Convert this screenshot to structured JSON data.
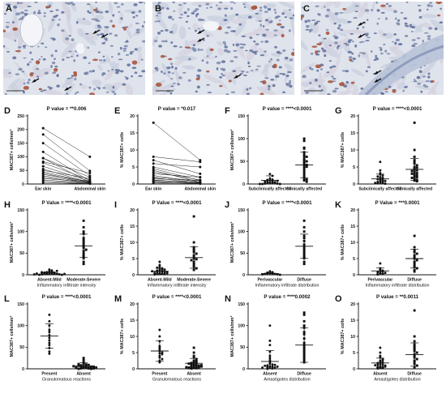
{
  "micrographs": [
    {
      "label": "A",
      "description": "MAC387 immunostained dermis, scattered brown cells, black arrows"
    },
    {
      "label": "B",
      "description": "MAC387 immunostained dermis with arrows on positive cells"
    },
    {
      "label": "C",
      "description": "MAC387 immunostained dermis near adnexa with arrows"
    }
  ],
  "chart_data": [
    {
      "id": "D",
      "type": "paired",
      "title": "P value = **0.006",
      "ylabel": "MAC387+ cells/mm²",
      "ylim": [
        0,
        250
      ],
      "yticks": [
        0,
        50,
        100,
        150,
        200,
        250
      ],
      "categories": [
        "Ear skin",
        "Abdominal skin"
      ],
      "pairs": [
        [
          205,
          100
        ],
        [
          182,
          48
        ],
        [
          150,
          30
        ],
        [
          118,
          10
        ],
        [
          95,
          25
        ],
        [
          95,
          5
        ],
        [
          82,
          40
        ],
        [
          78,
          15
        ],
        [
          65,
          10
        ],
        [
          55,
          5
        ],
        [
          50,
          20
        ],
        [
          45,
          5
        ],
        [
          40,
          3
        ],
        [
          35,
          10
        ],
        [
          30,
          5
        ],
        [
          25,
          2
        ],
        [
          20,
          8
        ],
        [
          15,
          3
        ],
        [
          10,
          2
        ],
        [
          5,
          1
        ]
      ],
      "xlabel": ""
    },
    {
      "id": "E",
      "type": "paired",
      "title": "P value = *0.017",
      "ylabel": "% MAC387+ cells",
      "ylim": [
        0,
        20
      ],
      "yticks": [
        0,
        5,
        10,
        15,
        20
      ],
      "categories": [
        "Ear skin",
        "Abdominal skin"
      ],
      "pairs": [
        [
          18,
          7
        ],
        [
          8,
          6.5
        ],
        [
          7,
          3
        ],
        [
          6,
          5
        ],
        [
          5,
          2
        ],
        [
          4.5,
          1
        ],
        [
          4,
          0.5
        ],
        [
          3.5,
          1.2
        ],
        [
          3,
          2
        ],
        [
          2.5,
          0.5
        ],
        [
          2,
          1
        ],
        [
          1.8,
          0.3
        ],
        [
          1.5,
          1
        ],
        [
          1.2,
          0.2
        ],
        [
          1,
          0.5
        ],
        [
          0.8,
          0.3
        ],
        [
          0.5,
          0.1
        ],
        [
          0.3,
          0.2
        ]
      ],
      "xlabel": ""
    },
    {
      "id": "F",
      "type": "scatter",
      "title": "P value = ****<0.0001",
      "ylabel": "MAC387+ cells/mm²",
      "ylim": [
        0,
        150
      ],
      "yticks": [
        0,
        50,
        100,
        150
      ],
      "categories": [
        "Subclinically affected",
        "Clinically affected"
      ],
      "groups": [
        [
          22,
          18,
          12,
          10,
          8,
          6,
          5,
          4,
          3,
          3,
          2,
          2,
          1,
          1,
          0,
          0,
          0,
          5,
          7,
          9
        ],
        [
          100,
          95,
          80,
          78,
          70,
          65,
          60,
          55,
          52,
          48,
          45,
          42,
          40,
          38,
          35,
          30,
          25,
          20,
          15,
          12,
          10,
          8,
          5,
          60,
          50
        ]
      ],
      "mean": [
        8,
        42
      ],
      "sd": [
        10,
        28
      ],
      "xlabel": ""
    },
    {
      "id": "G",
      "type": "scatter",
      "title": "P value = ****<0.0001",
      "ylabel": "% MAC387+ cells",
      "ylim": [
        0,
        20
      ],
      "yticks": [
        0,
        5,
        10,
        15,
        20
      ],
      "categories": [
        "Subclinically affected",
        "Clinically affected"
      ],
      "groups": [
        [
          6.5,
          4,
          3.2,
          2.8,
          2.5,
          2,
          1.8,
          1.5,
          1.2,
          1,
          0.8,
          0.6,
          0.5,
          0.4,
          0.2,
          0.1,
          1.4,
          2.2,
          0.9,
          0.3
        ],
        [
          18,
          10,
          8,
          7,
          6.5,
          6,
          5.5,
          5,
          4.6,
          4.2,
          4,
          3.8,
          3.5,
          3.2,
          3,
          2.8,
          2.5,
          2.2,
          2,
          1.8,
          1.5,
          1.2,
          1,
          0.8,
          4.8
        ]
      ],
      "mean": [
        1.5,
        4.3
      ],
      "sd": [
        1.4,
        3.2
      ],
      "xlabel": ""
    },
    {
      "id": "H",
      "type": "scatter",
      "title": "P Value = ****<0.0001",
      "ylabel": "MAC387+ cells/mm²",
      "ylim": [
        0,
        150
      ],
      "yticks": [
        0,
        50,
        100,
        150
      ],
      "categories": [
        "Absent-Mild",
        "Moderate-Severe"
      ],
      "groups": [
        [
          12,
          10,
          8,
          7,
          6,
          5,
          5,
          4,
          4,
          3,
          3,
          2,
          2,
          1,
          1,
          0,
          0,
          9,
          6,
          3,
          2,
          1
        ],
        [
          125,
          110,
          100,
          95,
          85,
          80,
          75,
          70,
          65,
          62,
          58,
          55,
          50,
          45,
          42,
          38,
          30,
          25
        ]
      ],
      "mean": [
        4,
        67
      ],
      "sd": [
        3,
        27
      ],
      "xlabel": "Inflammatory infiltrate intensity"
    },
    {
      "id": "I",
      "type": "scatter",
      "title": "P Value = ****<0.0001",
      "ylabel": "% MAC387+ cells",
      "ylim": [
        0,
        20
      ],
      "yticks": [
        0,
        5,
        10,
        15,
        20
      ],
      "categories": [
        "Absent-Mild",
        "Moderate-Severe"
      ],
      "groups": [
        [
          4,
          3,
          2.5,
          2,
          1.8,
          1.5,
          1.3,
          1.2,
          1,
          0.9,
          0.8,
          0.6,
          0.5,
          0.4,
          0.3,
          0.2,
          0.1,
          2.2,
          1.6,
          0.7,
          0.5,
          1.1
        ],
        [
          18,
          10,
          8.5,
          8,
          7.5,
          7,
          6.5,
          6,
          5.5,
          5,
          4.8,
          4.5,
          4,
          3.5,
          3,
          2.5,
          2,
          1.5
        ]
      ],
      "mean": [
        1.1,
        5.3
      ],
      "sd": [
        0.9,
        3.3
      ],
      "xlabel": "Inflammatory infiltrate intensity"
    },
    {
      "id": "J",
      "type": "scatter",
      "title": "P Value = ****<0.0001",
      "ylabel": "MAC387+ cells/mm²",
      "ylim": [
        0,
        150
      ],
      "yticks": [
        0,
        50,
        100,
        150
      ],
      "categories": [
        "Perivascular",
        "Diffuse"
      ],
      "groups": [
        [
          8,
          6,
          5,
          4,
          3,
          3,
          2,
          2,
          1,
          1,
          0
        ],
        [
          125,
          110,
          100,
          90,
          85,
          78,
          70,
          65,
          60,
          55,
          50,
          45,
          42,
          38,
          30,
          25
        ]
      ],
      "mean": [
        3,
        66
      ],
      "sd": [
        2.5,
        28
      ],
      "xlabel": "Inflammatory infiltrate distribution"
    },
    {
      "id": "K",
      "type": "scatter",
      "title": "P Value = ***0.0001",
      "ylabel": "% MAC387+ cells",
      "ylim": [
        0,
        20
      ],
      "yticks": [
        0,
        5,
        10,
        15,
        20
      ],
      "categories": [
        "Perivascular",
        "Diffuse"
      ],
      "groups": [
        [
          3.5,
          2,
          1.6,
          1.3,
          1.1,
          1,
          0.8,
          0.6,
          0.5,
          0.3,
          0.1
        ],
        [
          12,
          8.5,
          7.5,
          7,
          6.5,
          6,
          5.5,
          5,
          4.5,
          4,
          3.5,
          3,
          2.5,
          2,
          1.5,
          1
        ]
      ],
      "mean": [
        1.2,
        5
      ],
      "sd": [
        0.9,
        2.9
      ],
      "xlabel": "Inflammatory infiltrate distribution"
    },
    {
      "id": "L",
      "type": "scatter",
      "title": "P value = ****<0.0001",
      "ylabel": "MAC387+ cells/mm²",
      "ylim": [
        0,
        150
      ],
      "yticks": [
        0,
        50,
        100,
        150
      ],
      "categories": [
        "Present",
        "Absent"
      ],
      "groups": [
        [
          125,
          110,
          100,
          90,
          85,
          78,
          72,
          66,
          60,
          55,
          48,
          40,
          35
        ],
        [
          25,
          20,
          15,
          12,
          10,
          8,
          6,
          5,
          4,
          3,
          2,
          2,
          1,
          1,
          0,
          0,
          9,
          7,
          4,
          3,
          2,
          1,
          5,
          6,
          3,
          11
        ]
      ],
      "mean": [
        76,
        7
      ],
      "sd": [
        28,
        7
      ],
      "xlabel": "Granulomatous reactions"
    },
    {
      "id": "M",
      "type": "scatter",
      "title": "P value = ****<0.0001",
      "ylabel": "% MAC387+ cells",
      "ylim": [
        0,
        20
      ],
      "yticks": [
        0,
        5,
        10,
        15,
        20
      ],
      "categories": [
        "Present",
        "Absent"
      ],
      "groups": [
        [
          12,
          10,
          8.5,
          7,
          6.5,
          6,
          5.5,
          5,
          4.8,
          4.5,
          4,
          3.5,
          3,
          2.5,
          2
        ],
        [
          6.5,
          5,
          4,
          3.5,
          3,
          2.5,
          2.2,
          2,
          1.8,
          1.5,
          1.3,
          1.2,
          1,
          0.9,
          0.8,
          0.6,
          0.5,
          0.4,
          0.3,
          0.2,
          0.1,
          1.6,
          2.4,
          1.1,
          0.7,
          0.5
        ]
      ],
      "mean": [
        5.5,
        1.7
      ],
      "sd": [
        3.2,
        1.5
      ],
      "xlabel": "Granulomatous reactions"
    },
    {
      "id": "N",
      "type": "scatter",
      "title": "P value = ****0.0002",
      "ylabel": "MAC387+ cells/mm²",
      "ylim": [
        0,
        150
      ],
      "yticks": [
        0,
        50,
        100,
        150
      ],
      "categories": [
        "Absent",
        "Diffuse"
      ],
      "groups": [
        [
          100,
          65,
          55,
          40,
          30,
          25,
          20,
          15,
          12,
          10,
          8,
          6,
          5,
          4,
          3,
          2,
          1,
          0,
          9,
          7,
          5,
          3
        ],
        [
          130,
          125,
          110,
          100,
          95,
          85,
          80,
          70,
          60,
          55,
          50,
          45,
          40,
          35,
          30,
          25,
          20,
          15
        ]
      ],
      "mean": [
        17,
        55
      ],
      "sd": [
        25,
        40
      ],
      "xlabel": "Amastigotes distribution"
    },
    {
      "id": "O",
      "type": "scatter",
      "title": "P value = **0.0011",
      "ylabel": "% MAC387+ cells",
      "ylim": [
        0,
        20
      ],
      "yticks": [
        0,
        5,
        10,
        15,
        20
      ],
      "categories": [
        "Absent",
        "Diffuse"
      ],
      "groups": [
        [
          6.5,
          5,
          4,
          3.5,
          3,
          2.5,
          2.2,
          2,
          1.8,
          1.5,
          1.3,
          1.2,
          1,
          0.8,
          0.6,
          0.5,
          0.3,
          0.2,
          0.1,
          2.7,
          1.1,
          0.7
        ],
        [
          18,
          10,
          8.5,
          7.5,
          7,
          6.5,
          6,
          5.5,
          5,
          4.5,
          4,
          3.5,
          3,
          2.5,
          2,
          1.5,
          1,
          0.5
        ]
      ],
      "mean": [
        1.8,
        4.4
      ],
      "sd": [
        1.5,
        3.6
      ],
      "xlabel": "Amastigotes distribution"
    }
  ]
}
